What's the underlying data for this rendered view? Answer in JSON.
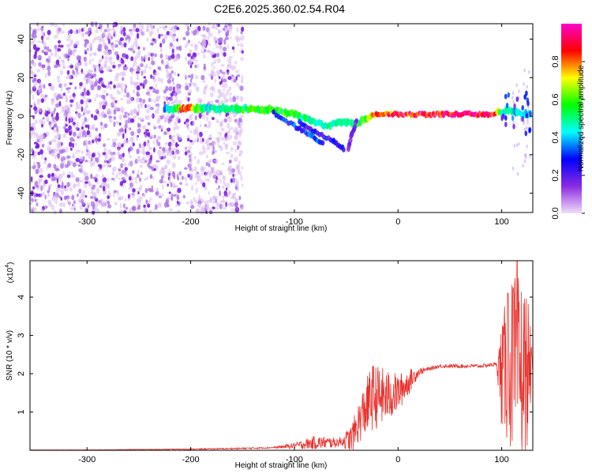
{
  "title": "C2E6.2025.360.02.54.R04",
  "chart_data": [
    {
      "type": "heatmap",
      "xlabel": "Height of straight line (km)",
      "ylabel": "Frequency (Hz)",
      "xlim": [
        -355,
        130
      ],
      "ylim": [
        -50,
        48
      ],
      "xticks": [
        -300,
        -200,
        -100,
        0,
        100
      ],
      "yticks": [
        -40,
        -20,
        0,
        20,
        40
      ],
      "colorbar": {
        "label": "Normalized spectral amplitude",
        "range": [
          0,
          1
        ],
        "ticks": [
          "0.0",
          "0.2",
          "0.4",
          "0.6",
          "0.8"
        ],
        "colors": [
          "#f2ddf8",
          "#8a2be2",
          "#0000ff",
          "#00ffff",
          "#00ff00",
          "#ffff00",
          "#ff0000",
          "#ff00cc"
        ]
      },
      "noise_region_x": [
        -355,
        -150
      ],
      "gap_x": [
        -210,
        -205
      ],
      "ridge": [
        {
          "x": -225,
          "y": 4,
          "amp": 0.35
        },
        {
          "x": -205,
          "y": 4,
          "amp": 0.85
        },
        {
          "x": -185,
          "y": 4,
          "amp": 0.45
        },
        {
          "x": -150,
          "y": 4,
          "amp": 0.55
        },
        {
          "x": -120,
          "y": 3,
          "amp": 0.6
        },
        {
          "x": -100,
          "y": 1,
          "amp": 0.55
        },
        {
          "x": -85,
          "y": -2,
          "amp": 0.5
        },
        {
          "x": -70,
          "y": -5,
          "amp": 0.45
        },
        {
          "x": -55,
          "y": -3,
          "amp": 0.5
        },
        {
          "x": -40,
          "y": -4,
          "amp": 0.55
        },
        {
          "x": -30,
          "y": -1,
          "amp": 0.6
        },
        {
          "x": -20,
          "y": 1,
          "amp": 0.8
        },
        {
          "x": 0,
          "y": 1,
          "amp": 0.9
        },
        {
          "x": 50,
          "y": 1,
          "amp": 0.95
        },
        {
          "x": 90,
          "y": 1,
          "amp": 0.95
        },
        {
          "x": 100,
          "y": 2,
          "amp": 0.5
        },
        {
          "x": 110,
          "y": 3,
          "amp": 0.45
        },
        {
          "x": 120,
          "y": 1,
          "amp": 0.4
        },
        {
          "x": 128,
          "y": 1,
          "amp": 0.4
        }
      ],
      "branches": [
        {
          "points": [
            [
              -120,
              2
            ],
            [
              -100,
              -5
            ],
            [
              -85,
              -10
            ],
            [
              -72,
              -14
            ]
          ],
          "amp": 0.3
        },
        {
          "points": [
            [
              -95,
              -3
            ],
            [
              -80,
              -8
            ],
            [
              -62,
              -13
            ],
            [
              -52,
              -17
            ]
          ],
          "amp": 0.25
        },
        {
          "points": [
            [
              -40,
              -3
            ],
            [
              -45,
              -10
            ],
            [
              -48,
              -17
            ]
          ],
          "amp": 0.15
        }
      ]
    },
    {
      "type": "line",
      "xlabel": "Height of straight line (km)",
      "ylabel": "SNR (10 * v/v)",
      "yscale_label": "(x10",
      "yscale_exponent": "4",
      "xlim": [
        -355,
        130
      ],
      "ylim": [
        0,
        4.95
      ],
      "xticks": [
        -300,
        -200,
        -100,
        0,
        100
      ],
      "yticks": [
        1,
        2,
        3,
        4
      ],
      "color": "#e8322d",
      "envelope": [
        {
          "x": -355,
          "v": 0.01
        },
        {
          "x": -300,
          "v": 0.01
        },
        {
          "x": -250,
          "v": 0.02
        },
        {
          "x": -200,
          "v": 0.03
        },
        {
          "x": -150,
          "v": 0.05
        },
        {
          "x": -120,
          "v": 0.07
        },
        {
          "x": -100,
          "v": 0.12
        },
        {
          "x": -80,
          "v": 0.2
        },
        {
          "x": -60,
          "v": 0.2
        },
        {
          "x": -45,
          "v": 0.3
        },
        {
          "x": -35,
          "v": 0.9
        },
        {
          "x": -25,
          "v": 1.4
        },
        {
          "x": -10,
          "v": 1.4
        },
        {
          "x": 0,
          "v": 1.5
        },
        {
          "x": 20,
          "v": 2.05
        },
        {
          "x": 40,
          "v": 2.2
        },
        {
          "x": 60,
          "v": 2.2
        },
        {
          "x": 80,
          "v": 2.2
        },
        {
          "x": 95,
          "v": 2.25
        },
        {
          "x": 100,
          "v": 2.0
        },
        {
          "x": 110,
          "v": 2.2
        },
        {
          "x": 120,
          "v": 2.0
        },
        {
          "x": 130,
          "v": 2.2
        }
      ],
      "noise": [
        {
          "x": -355,
          "a": 0.0
        },
        {
          "x": -120,
          "a": 0.02
        },
        {
          "x": -100,
          "a": 0.08
        },
        {
          "x": -80,
          "a": 0.18
        },
        {
          "x": -55,
          "a": 0.12
        },
        {
          "x": -40,
          "a": 0.5
        },
        {
          "x": -25,
          "a": 0.9
        },
        {
          "x": -10,
          "a": 0.7
        },
        {
          "x": 0,
          "a": 0.5
        },
        {
          "x": 10,
          "a": 0.35
        },
        {
          "x": 20,
          "a": 0.1
        },
        {
          "x": 30,
          "a": 0.05
        },
        {
          "x": 95,
          "a": 0.05
        },
        {
          "x": 100,
          "a": 1.5
        },
        {
          "x": 110,
          "a": 2.3
        },
        {
          "x": 118,
          "a": 2.6
        },
        {
          "x": 125,
          "a": 2.0
        },
        {
          "x": 130,
          "a": 0.05
        }
      ],
      "peaks": [
        {
          "x": 115,
          "v": 4.95
        },
        {
          "x": 111,
          "v": 4.25
        },
        {
          "x": 106,
          "v": 4.1
        },
        {
          "x": 101,
          "v": 3.25
        }
      ]
    }
  ]
}
